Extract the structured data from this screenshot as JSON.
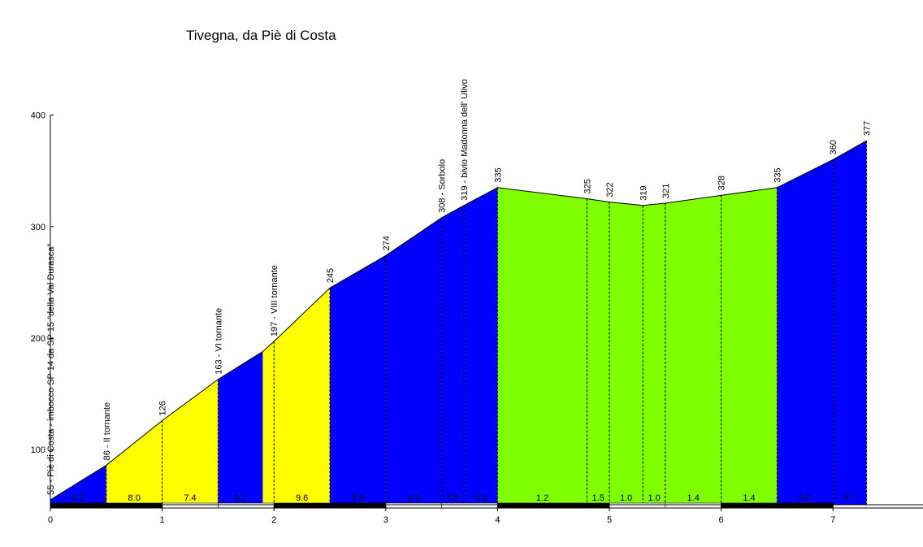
{
  "chart_data": {
    "type": "area",
    "title": "Tivegna, da Piè di Costa",
    "xlabel": "",
    "ylabel": "",
    "xlim": [
      0,
      7.7
    ],
    "ylim": [
      50,
      400
    ],
    "grid": false,
    "x_ticks": [
      "0",
      "1",
      "2",
      "3",
      "4",
      "5",
      "6",
      "7"
    ],
    "y_ticks": [
      "100",
      "200",
      "300",
      "400"
    ],
    "profile": [
      {
        "x": 0.0,
        "y": 55
      },
      {
        "x": 0.5,
        "y": 86
      },
      {
        "x": 1.0,
        "y": 126
      },
      {
        "x": 1.5,
        "y": 163
      },
      {
        "x": 1.9,
        "y": 188
      },
      {
        "x": 2.0,
        "y": 197
      },
      {
        "x": 2.5,
        "y": 245
      },
      {
        "x": 3.0,
        "y": 274
      },
      {
        "x": 3.5,
        "y": 308
      },
      {
        "x": 3.7,
        "y": 319
      },
      {
        "x": 4.0,
        "y": 335
      },
      {
        "x": 4.8,
        "y": 325
      },
      {
        "x": 5.0,
        "y": 322
      },
      {
        "x": 5.3,
        "y": 319
      },
      {
        "x": 5.5,
        "y": 321
      },
      {
        "x": 6.0,
        "y": 328
      },
      {
        "x": 6.5,
        "y": 335
      },
      {
        "x": 7.0,
        "y": 360
      },
      {
        "x": 7.3,
        "y": 377
      }
    ],
    "segments": [
      {
        "from": 0.0,
        "to": 0.5,
        "gradient": "6.2",
        "color": "#0000ff"
      },
      {
        "from": 0.5,
        "to": 1.0,
        "gradient": "8.0",
        "color": "#ffff00"
      },
      {
        "from": 1.0,
        "to": 1.5,
        "gradient": "7.4",
        "color": "#ffff00"
      },
      {
        "from": 1.5,
        "to": 1.9,
        "gradient": "6.2",
        "color": "#0000ff"
      },
      {
        "from": 1.9,
        "to": 2.0,
        "gradient": "",
        "color": "#ffff00"
      },
      {
        "from": 2.0,
        "to": 2.5,
        "gradient": "9.6",
        "color": "#ffff00"
      },
      {
        "from": 2.5,
        "to": 3.0,
        "gradient": "5.8",
        "color": "#0000ff"
      },
      {
        "from": 3.0,
        "to": 3.5,
        "gradient": "6.8",
        "color": "#0000ff"
      },
      {
        "from": 3.5,
        "to": 3.7,
        "gradient": "5.5",
        "color": "#0000ff"
      },
      {
        "from": 3.7,
        "to": 4.0,
        "gradient": "5.3",
        "color": "#0000ff"
      },
      {
        "from": 4.0,
        "to": 4.8,
        "gradient": "1.2",
        "color": "#80ff00"
      },
      {
        "from": 4.8,
        "to": 5.0,
        "gradient": "1.5",
        "color": "#80ff00"
      },
      {
        "from": 5.0,
        "to": 5.3,
        "gradient": "1.0",
        "color": "#80ff00"
      },
      {
        "from": 5.3,
        "to": 5.5,
        "gradient": "1.0",
        "color": "#80ff00"
      },
      {
        "from": 5.5,
        "to": 6.0,
        "gradient": "1.4",
        "color": "#80ff00"
      },
      {
        "from": 6.0,
        "to": 6.5,
        "gradient": "1.4",
        "color": "#80ff00"
      },
      {
        "from": 6.5,
        "to": 7.0,
        "gradient": "5.0",
        "color": "#0000ff"
      },
      {
        "from": 7.0,
        "to": 7.3,
        "gradient": "5.7",
        "color": "#0000ff"
      }
    ],
    "waypoints": [
      {
        "x": 0.0,
        "label": "55 - Piè di Costa - imbocco SP 14 da SP 15 \"della Val Durasca\""
      },
      {
        "x": 0.5,
        "label": "86 - II tornante"
      },
      {
        "x": 1.0,
        "label": "126"
      },
      {
        "x": 1.5,
        "label": "163 - VI tornante"
      },
      {
        "x": 2.0,
        "label": "197 - VIII tornante"
      },
      {
        "x": 2.5,
        "label": "245"
      },
      {
        "x": 3.0,
        "label": "274"
      },
      {
        "x": 3.5,
        "label": "308 - Sorbolo"
      },
      {
        "x": 3.7,
        "label": "319 - bivio Madonna dell' Ulivo"
      },
      {
        "x": 4.0,
        "label": "335"
      },
      {
        "x": 4.8,
        "label": "325"
      },
      {
        "x": 5.0,
        "label": "322"
      },
      {
        "x": 5.3,
        "label": "319"
      },
      {
        "x": 5.5,
        "label": "321"
      },
      {
        "x": 6.0,
        "label": "328"
      },
      {
        "x": 6.5,
        "label": "335"
      },
      {
        "x": 7.0,
        "label": "360"
      },
      {
        "x": 7.3,
        "label": "377"
      }
    ],
    "colors": {
      "steep": "#0000ff",
      "medium": "#ffff00",
      "flat": "#80ff00"
    }
  }
}
